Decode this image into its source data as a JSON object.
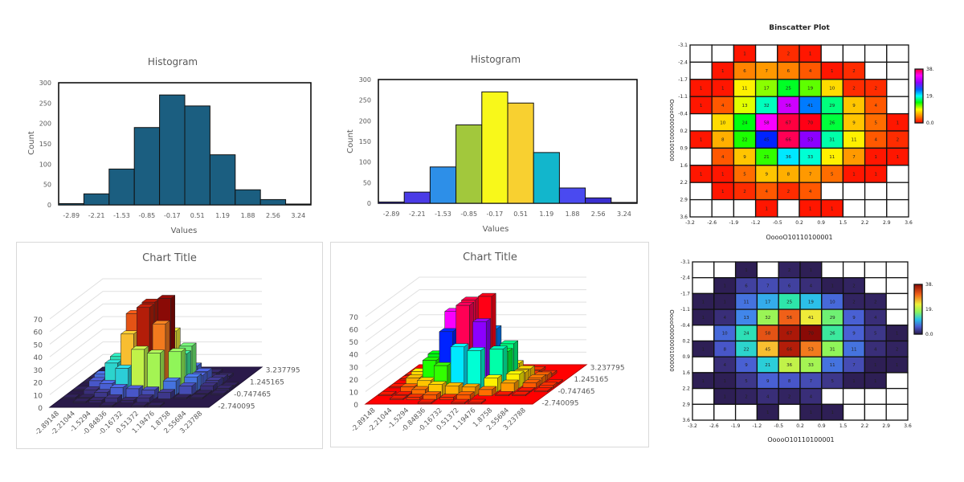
{
  "chart_data": [
    {
      "type": "bar",
      "title": "Histogram",
      "xlabel": "Values",
      "ylabel": "Count",
      "categories": [
        "-2.89",
        "-2.21",
        "-1.53",
        "-0.85",
        "-0.17",
        "0.51",
        "1.19",
        "1.88",
        "2.56",
        "3.24"
      ],
      "values": [
        3,
        27,
        88,
        190,
        270,
        243,
        123,
        37,
        13,
        2
      ],
      "ylim": [
        0,
        300
      ],
      "yticks": [
        "0",
        "50",
        "100",
        "150",
        "200",
        "250",
        "300"
      ],
      "bar_color": "#1b5e80",
      "grid": false
    },
    {
      "type": "bar",
      "title": "Histogram",
      "xlabel": "Values",
      "ylabel": "Count",
      "categories": [
        "-2.89",
        "-2.21",
        "-1.53",
        "-0.85",
        "-0.17",
        "0.51",
        "1.19",
        "1.88",
        "2.56",
        "3.24"
      ],
      "values": [
        3,
        27,
        88,
        190,
        270,
        243,
        123,
        37,
        13,
        2
      ],
      "ylim": [
        0,
        300
      ],
      "yticks": [
        "0",
        "50",
        "100",
        "150",
        "200",
        "250",
        "300"
      ],
      "bar_colors": [
        "#3a2fd0",
        "#4a3be6",
        "#2d8fe8",
        "#a2c83c",
        "#f8f81a",
        "#f8d030",
        "#12b6cc",
        "#4a4af0",
        "#3a2fd0",
        "#3a2fd0"
      ],
      "grid": false
    },
    {
      "type": "heatmap",
      "title": "Binscatter Plot",
      "xlabel": "OoooO10110100001",
      "ylabel": "OoooO000000100000",
      "xticks": [
        "-3.2",
        "-2.6",
        "-1.9",
        "-1.2",
        "-0.5",
        "0.2",
        "0.9",
        "1.5",
        "2.2",
        "2.9",
        "3.6"
      ],
      "yticks": [
        "-3.1",
        "-2.4",
        "-1.7",
        "-1.1",
        "-0.4",
        "0.2",
        "0.9",
        "1.6",
        "2.2",
        "2.9",
        "3.6"
      ],
      "colorbar_labels": [
        "38.",
        "19.",
        "0.0"
      ],
      "colormap": "hue-cycle",
      "values": [
        [
          null,
          null,
          1,
          null,
          2,
          1,
          null,
          null,
          null,
          null
        ],
        [
          null,
          1,
          6,
          7,
          6,
          4,
          1,
          2,
          null,
          null
        ],
        [
          1,
          1,
          11,
          17,
          25,
          19,
          10,
          2,
          2,
          null
        ],
        [
          1,
          4,
          13,
          32,
          56,
          41,
          29,
          9,
          4,
          null
        ],
        [
          null,
          10,
          24,
          58,
          67,
          70,
          26,
          9,
          5,
          1
        ],
        [
          1,
          8,
          22,
          45,
          66,
          53,
          31,
          11,
          4,
          2
        ],
        [
          null,
          4,
          9,
          21,
          36,
          33,
          11,
          7,
          1,
          1
        ],
        [
          1,
          1,
          5,
          9,
          8,
          7,
          5,
          1,
          1,
          null
        ],
        [
          null,
          1,
          2,
          4,
          2,
          4,
          null,
          null,
          null,
          null
        ],
        [
          null,
          null,
          null,
          1,
          null,
          1,
          1,
          null,
          null,
          null
        ]
      ]
    },
    {
      "type": "heatmap",
      "title": "",
      "xlabel": "OoooO10110100001",
      "ylabel": "OoooO000000100000",
      "xticks": [
        "-3.2",
        "-2.6",
        "-1.9",
        "-1.2",
        "-0.5",
        "0.2",
        "0.9",
        "1.5",
        "2.2",
        "2.9",
        "3.6"
      ],
      "yticks": [
        "-3.1",
        "-2.4",
        "-1.7",
        "-1.1",
        "-0.4",
        "0.2",
        "0.9",
        "1.6",
        "2.2",
        "2.9",
        "3.6"
      ],
      "colorbar_labels": [
        "38.",
        "19.",
        "0.0"
      ],
      "colormap": "turbo",
      "values": [
        [
          null,
          null,
          1,
          null,
          2,
          1,
          null,
          null,
          null,
          null
        ],
        [
          null,
          1,
          6,
          7,
          6,
          4,
          1,
          2,
          null,
          null
        ],
        [
          1,
          1,
          11,
          17,
          25,
          19,
          10,
          2,
          2,
          null
        ],
        [
          1,
          4,
          13,
          32,
          56,
          41,
          29,
          9,
          4,
          null
        ],
        [
          null,
          10,
          24,
          58,
          67,
          70,
          26,
          9,
          5,
          1
        ],
        [
          1,
          8,
          22,
          45,
          66,
          53,
          31,
          11,
          4,
          2
        ],
        [
          null,
          4,
          9,
          21,
          36,
          33,
          11,
          7,
          1,
          1
        ],
        [
          1,
          1,
          5,
          9,
          8,
          7,
          5,
          1,
          1,
          null
        ],
        [
          null,
          1,
          2,
          4,
          2,
          4,
          null,
          null,
          null,
          null
        ],
        [
          null,
          null,
          null,
          1,
          null,
          1,
          1,
          null,
          null,
          null
        ]
      ]
    },
    {
      "type": "bar3d",
      "title": "Chart Title",
      "colormap": "turbo",
      "xticks": [
        "-2.89148",
        "-2.21044",
        "-1.5294",
        "-0.84836",
        "-0.16732",
        "0.51372",
        "1.19476",
        "1.8758",
        "2.55684",
        "3.23788"
      ],
      "depth_ticks": [
        "-2.740095",
        "-0.747465",
        "1.245165",
        "3.237795"
      ],
      "yticks": [
        "0",
        "10",
        "20",
        "30",
        "40",
        "50",
        "60",
        "70"
      ],
      "ylim": [
        0,
        70
      ],
      "values": [
        [
          null,
          null,
          1,
          null,
          2,
          1,
          null,
          null,
          null,
          null
        ],
        [
          null,
          1,
          6,
          7,
          6,
          4,
          1,
          2,
          null,
          null
        ],
        [
          1,
          1,
          11,
          17,
          25,
          19,
          10,
          2,
          2,
          null
        ],
        [
          1,
          4,
          13,
          32,
          56,
          41,
          29,
          9,
          4,
          null
        ],
        [
          null,
          10,
          24,
          58,
          67,
          70,
          26,
          9,
          5,
          1
        ],
        [
          1,
          8,
          22,
          45,
          66,
          53,
          31,
          11,
          4,
          2
        ],
        [
          null,
          4,
          9,
          21,
          36,
          33,
          11,
          7,
          1,
          1
        ],
        [
          1,
          1,
          5,
          9,
          8,
          7,
          5,
          1,
          1,
          null
        ],
        [
          null,
          1,
          2,
          4,
          2,
          4,
          null,
          null,
          null,
          null
        ],
        [
          null,
          null,
          null,
          1,
          null,
          1,
          1,
          null,
          null,
          null
        ]
      ]
    },
    {
      "type": "bar3d",
      "title": "Chart Title",
      "colormap": "hue-cycle",
      "xticks": [
        "-2.89148",
        "-2.21044",
        "-1.5294",
        "-0.84836",
        "-0.16732",
        "0.51372",
        "1.19476",
        "1.8758",
        "2.55684",
        "3.23788"
      ],
      "depth_ticks": [
        "-2.740095",
        "-0.747465",
        "1.245165",
        "3.237795"
      ],
      "yticks": [
        "0",
        "10",
        "20",
        "30",
        "40",
        "50",
        "60",
        "70"
      ],
      "ylim": [
        0,
        70
      ],
      "values": [
        [
          null,
          null,
          1,
          null,
          2,
          1,
          null,
          null,
          null,
          null
        ],
        [
          null,
          1,
          6,
          7,
          6,
          4,
          1,
          2,
          null,
          null
        ],
        [
          1,
          1,
          11,
          17,
          25,
          19,
          10,
          2,
          2,
          null
        ],
        [
          1,
          4,
          13,
          32,
          56,
          41,
          29,
          9,
          4,
          null
        ],
        [
          null,
          10,
          24,
          58,
          67,
          70,
          26,
          9,
          5,
          1
        ],
        [
          1,
          8,
          22,
          45,
          66,
          53,
          31,
          11,
          4,
          2
        ],
        [
          null,
          4,
          9,
          21,
          36,
          33,
          11,
          7,
          1,
          1
        ],
        [
          1,
          1,
          5,
          9,
          8,
          7,
          5,
          1,
          1,
          null
        ],
        [
          null,
          1,
          2,
          4,
          2,
          4,
          null,
          null,
          null,
          null
        ],
        [
          null,
          null,
          null,
          1,
          null,
          1,
          1,
          null,
          null,
          null
        ]
      ]
    }
  ]
}
